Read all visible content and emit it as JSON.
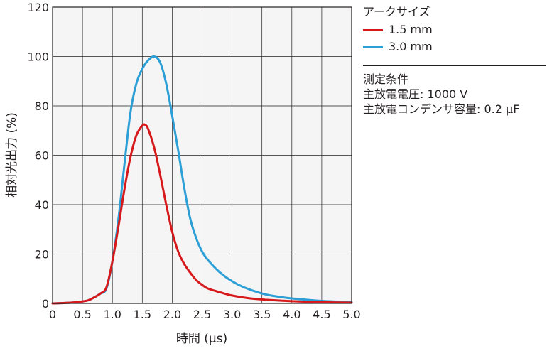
{
  "chart_data": {
    "type": "line",
    "title": "",
    "xlabel": "時間 (μs)",
    "ylabel": "相対光出力 (%)",
    "xlim": [
      0,
      5.0
    ],
    "ylim": [
      0,
      120
    ],
    "x_ticks": [
      "0",
      "0.5",
      "1.0",
      "1.5",
      "2.0",
      "2.5",
      "3.0",
      "3.5",
      "4.0",
      "4.5",
      "5.0"
    ],
    "y_ticks": [
      "0",
      "20",
      "40",
      "60",
      "80",
      "100",
      "120"
    ],
    "grid": true,
    "legend_position": "right",
    "series": [
      {
        "name": "1.5 mm",
        "color": "#d7191c",
        "points": [
          [
            0,
            0.0
          ],
          [
            0.3,
            0.3
          ],
          [
            0.5,
            0.8
          ],
          [
            0.6,
            1.3
          ],
          [
            0.7,
            2.5
          ],
          [
            0.8,
            4.0
          ],
          [
            0.9,
            6.5
          ],
          [
            1.0,
            17.0
          ],
          [
            1.1,
            31.0
          ],
          [
            1.2,
            46.0
          ],
          [
            1.3,
            59.0
          ],
          [
            1.4,
            68.0
          ],
          [
            1.5,
            72.0
          ],
          [
            1.55,
            72.3
          ],
          [
            1.6,
            70.5
          ],
          [
            1.7,
            63.0
          ],
          [
            1.8,
            52.0
          ],
          [
            1.9,
            40.0
          ],
          [
            2.0,
            29.0
          ],
          [
            2.1,
            21.0
          ],
          [
            2.2,
            16.0
          ],
          [
            2.3,
            12.5
          ],
          [
            2.4,
            9.5
          ],
          [
            2.5,
            7.5
          ],
          [
            2.6,
            6.0
          ],
          [
            2.8,
            4.5
          ],
          [
            3.0,
            3.2
          ],
          [
            3.25,
            2.2
          ],
          [
            3.5,
            1.6
          ],
          [
            4.0,
            0.9
          ],
          [
            4.5,
            0.5
          ],
          [
            5.0,
            0.3
          ]
        ]
      },
      {
        "name": "3.0 mm",
        "color": "#2b9fd6",
        "points": [
          [
            0,
            0.0
          ],
          [
            0.3,
            0.3
          ],
          [
            0.5,
            0.8
          ],
          [
            0.6,
            1.3
          ],
          [
            0.7,
            2.5
          ],
          [
            0.8,
            4.0
          ],
          [
            0.9,
            6.0
          ],
          [
            1.0,
            17.0
          ],
          [
            1.1,
            34.0
          ],
          [
            1.2,
            56.0
          ],
          [
            1.3,
            77.0
          ],
          [
            1.4,
            89.0
          ],
          [
            1.5,
            95.0
          ],
          [
            1.6,
            98.5
          ],
          [
            1.7,
            100.0
          ],
          [
            1.8,
            97.5
          ],
          [
            1.9,
            89.0
          ],
          [
            2.0,
            76.0
          ],
          [
            2.1,
            62.0
          ],
          [
            2.2,
            47.0
          ],
          [
            2.3,
            34.5
          ],
          [
            2.4,
            26.5
          ],
          [
            2.5,
            21.0
          ],
          [
            2.6,
            17.5
          ],
          [
            2.8,
            12.5
          ],
          [
            3.0,
            9.0
          ],
          [
            3.2,
            6.5
          ],
          [
            3.5,
            4.0
          ],
          [
            3.75,
            2.8
          ],
          [
            4.0,
            2.0
          ],
          [
            4.5,
            1.0
          ],
          [
            5.0,
            0.5
          ]
        ]
      }
    ],
    "legend": {
      "title": "アークサイズ",
      "items": [
        "1.5 mm",
        "3.0 mm"
      ]
    },
    "conditions": {
      "title": "測定条件",
      "lines": [
        "主放電電圧: 1000 V",
        "主放電コンデンサ容量: 0.2 μF"
      ]
    }
  }
}
